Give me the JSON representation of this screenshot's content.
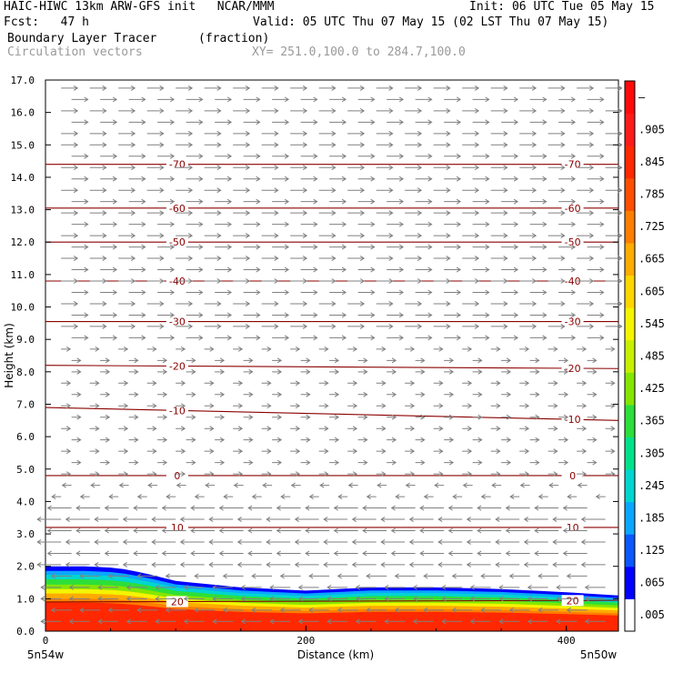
{
  "header": {
    "line1_left": "HAIC-HIWC 13km ARW-GFS init   NCAR/MMM",
    "line1_right": "Init: 06 UTC Tue 05 May 15",
    "fcst": "Fcst:   47 h",
    "valid": "Valid: 05 UTC Thu 07 May 15 (02 LST Thu 07 May 15)",
    "field": "Boundary Layer Tracer",
    "units": "(fraction)",
    "vectors": "Circulation vectors",
    "xy": "XY= 251.0,100.0 to 284.7,100.0"
  },
  "chart_data": {
    "type": "heatmap",
    "xlabel": "Distance (km)",
    "ylabel": "Height (km)",
    "xlim": [
      0,
      440
    ],
    "ylim": [
      0,
      17
    ],
    "yticks": [
      "0.0",
      "1.0",
      "2.0",
      "3.0",
      "4.0",
      "5.0",
      "6.0",
      "7.0",
      "8.0",
      "9.0",
      "10.0",
      "11.0",
      "12.0",
      "13.0",
      "14.0",
      "15.0",
      "16.0",
      "17.0"
    ],
    "xticks": [
      "0",
      "200",
      "400"
    ],
    "x_endpoints": {
      "left": "5n54w",
      "right": "5n50w"
    },
    "tracer_top_km": [
      {
        "x": 0,
        "top": 2.0
      },
      {
        "x": 30,
        "top": 2.0
      },
      {
        "x": 55,
        "top": 1.95
      },
      {
        "x": 75,
        "top": 1.8
      },
      {
        "x": 100,
        "top": 1.55
      },
      {
        "x": 150,
        "top": 1.35
      },
      {
        "x": 200,
        "top": 1.25
      },
      {
        "x": 250,
        "top": 1.35
      },
      {
        "x": 300,
        "top": 1.35
      },
      {
        "x": 350,
        "top": 1.3
      },
      {
        "x": 400,
        "top": 1.2
      },
      {
        "x": 440,
        "top": 1.1
      }
    ],
    "temperature_contours_C": [
      {
        "value": 20,
        "label": "20",
        "h0": 0.9,
        "h1": 0.95
      },
      {
        "value": 10,
        "label": "10",
        "h0": 3.2,
        "h1": 3.2
      },
      {
        "value": 0,
        "label": "0",
        "h0": 4.8,
        "h1": 4.8
      },
      {
        "value": -10,
        "label": "-10",
        "h0": 6.9,
        "h1": 6.5
      },
      {
        "value": -20,
        "label": "-20",
        "h0": 8.2,
        "h1": 8.1
      },
      {
        "value": -30,
        "label": "-30",
        "h0": 9.55,
        "h1": 9.55
      },
      {
        "value": -40,
        "label": "-40",
        "h0": 10.8,
        "h1": 10.8
      },
      {
        "value": -50,
        "label": "-50",
        "h0": 12.0,
        "h1": 12.0
      },
      {
        "value": -60,
        "label": "-60",
        "h0": 13.05,
        "h1": 13.05
      },
      {
        "value": -70,
        "label": "-70",
        "h0": 14.4,
        "h1": 14.4
      }
    ],
    "colorbar": {
      "labels": [
        ".005",
        ".065",
        ".125",
        ".185",
        ".245",
        ".305",
        ".365",
        ".425",
        ".485",
        ".545",
        ".605",
        ".665",
        ".725",
        ".785",
        ".845",
        ".905",
        "–"
      ],
      "colors": [
        "#ffffff",
        "#0000ff",
        "#0a56ff",
        "#0aa6ff",
        "#00d5d0",
        "#00e28a",
        "#2ddf3a",
        "#84e600",
        "#c7ef00",
        "#f4f400",
        "#ffd500",
        "#ffab00",
        "#ff7d00",
        "#ff4e00",
        "#ff2800",
        "#ff1a1a",
        "#ff0a0a"
      ]
    }
  }
}
